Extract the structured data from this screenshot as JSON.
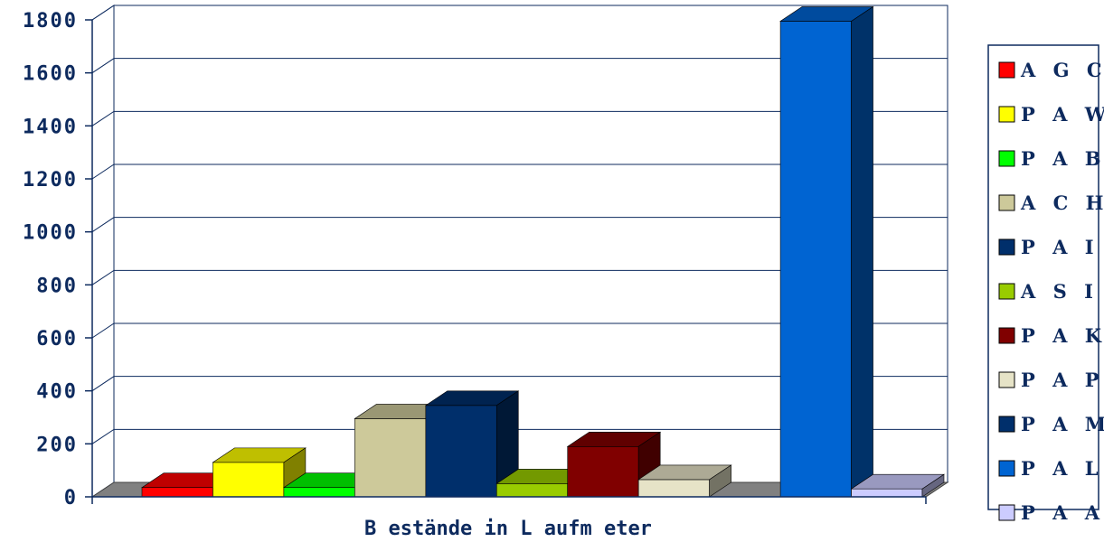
{
  "chart_data": {
    "type": "bar",
    "categories": [
      "A G C",
      "P A W",
      "P A B",
      "A C H",
      "P A I",
      "A S I",
      "P A K",
      "P A P",
      "P A M",
      "P A L",
      "P A A"
    ],
    "series": [
      {
        "name": "A G C",
        "values": [
          35,
          0,
          0,
          0,
          0,
          0,
          0,
          0,
          0,
          0,
          0
        ]
      },
      {
        "name": "P A W",
        "values": [
          0,
          130,
          0,
          0,
          0,
          0,
          0,
          0,
          0,
          0,
          0
        ]
      },
      {
        "name": "P A B",
        "values": [
          0,
          0,
          35,
          0,
          0,
          0,
          0,
          0,
          0,
          0,
          0
        ]
      },
      {
        "name": "A C H",
        "values": [
          0,
          0,
          0,
          295,
          0,
          0,
          0,
          0,
          0,
          0,
          0
        ]
      },
      {
        "name": "P A I",
        "values": [
          0,
          0,
          0,
          0,
          345,
          0,
          0,
          0,
          0,
          0,
          0
        ]
      },
      {
        "name": "A S I",
        "values": [
          0,
          0,
          0,
          0,
          0,
          50,
          0,
          0,
          0,
          0,
          0
        ]
      },
      {
        "name": "P A K",
        "values": [
          0,
          0,
          0,
          0,
          0,
          0,
          190,
          0,
          0,
          0,
          0
        ]
      },
      {
        "name": "P A P",
        "values": [
          0,
          0,
          0,
          0,
          0,
          0,
          0,
          65,
          0,
          0,
          0
        ]
      },
      {
        "name": "P A M",
        "values": [
          0,
          0,
          0,
          0,
          0,
          0,
          0,
          0,
          0,
          0,
          0
        ]
      },
      {
        "name": "P A L",
        "values": [
          0,
          0,
          0,
          0,
          0,
          0,
          0,
          0,
          0,
          1795,
          0
        ]
      },
      {
        "name": "P A A",
        "values": [
          0,
          0,
          0,
          0,
          0,
          0,
          0,
          0,
          0,
          0,
          30
        ]
      }
    ],
    "values": [
      35,
      130,
      35,
      295,
      345,
      50,
      190,
      65,
      0,
      1795,
      30
    ],
    "colors": [
      "#ff0000",
      "#ffff00",
      "#00ff00",
      "#cdc99a",
      "#002f6b",
      "#99cc00",
      "#800000",
      "#e6e3c7",
      "#002f6b",
      "#0064d2",
      "#ccccff"
    ],
    "xlabel": "B estände in L aufm eter",
    "ylabel": "",
    "ylim": [
      0,
      1800
    ],
    "yticks": [
      "0",
      "200",
      "400",
      "600",
      "800",
      "1000",
      "1200",
      "1400",
      "1600",
      "1800"
    ],
    "grid": true,
    "legend_position": "right"
  }
}
